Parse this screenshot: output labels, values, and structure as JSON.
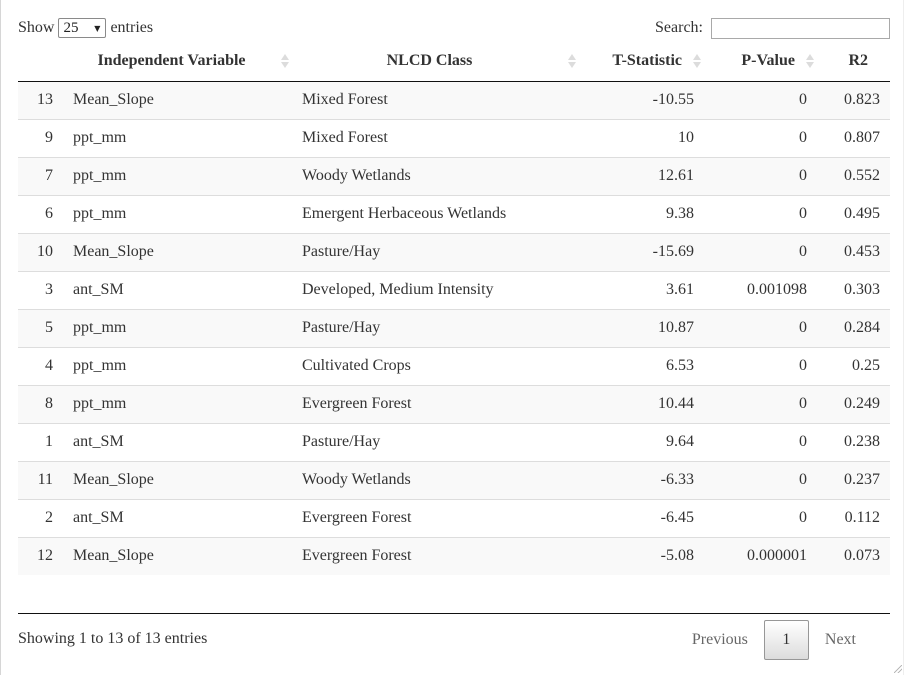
{
  "length_menu": {
    "prefix": "Show",
    "value": "25",
    "suffix": "entries"
  },
  "search": {
    "label": "Search:",
    "value": ""
  },
  "columns": [
    {
      "label": ""
    },
    {
      "label": "Independent Variable",
      "sort": "none"
    },
    {
      "label": "NLCD Class",
      "sort": "none"
    },
    {
      "label": "T-Statistic",
      "sort": "none"
    },
    {
      "label": "P-Value",
      "sort": "none"
    },
    {
      "label": "R2",
      "sort": "descending"
    }
  ],
  "rows": [
    [
      "13",
      "Mean_Slope",
      "Mixed Forest",
      "-10.55",
      "0",
      "0.823"
    ],
    [
      "9",
      "ppt_mm",
      "Mixed Forest",
      "10",
      "0",
      "0.807"
    ],
    [
      "7",
      "ppt_mm",
      "Woody Wetlands",
      "12.61",
      "0",
      "0.552"
    ],
    [
      "6",
      "ppt_mm",
      "Emergent Herbaceous Wetlands",
      "9.38",
      "0",
      "0.495"
    ],
    [
      "10",
      "Mean_Slope",
      "Pasture/Hay",
      "-15.69",
      "0",
      "0.453"
    ],
    [
      "3",
      "ant_SM",
      "Developed, Medium Intensity",
      "3.61",
      "0.001098",
      "0.303"
    ],
    [
      "5",
      "ppt_mm",
      "Pasture/Hay",
      "10.87",
      "0",
      "0.284"
    ],
    [
      "4",
      "ppt_mm",
      "Cultivated Crops",
      "6.53",
      "0",
      "0.25"
    ],
    [
      "8",
      "ppt_mm",
      "Evergreen Forest",
      "10.44",
      "0",
      "0.249"
    ],
    [
      "1",
      "ant_SM",
      "Pasture/Hay",
      "9.64",
      "0",
      "0.238"
    ],
    [
      "11",
      "Mean_Slope",
      "Woody Wetlands",
      "-6.33",
      "0",
      "0.237"
    ],
    [
      "2",
      "ant_SM",
      "Evergreen Forest",
      "-6.45",
      "0",
      "0.112"
    ],
    [
      "12",
      "Mean_Slope",
      "Evergreen Forest",
      "-5.08",
      "0.000001",
      "0.073"
    ]
  ],
  "info": "Showing 1 to 13 of 13 entries",
  "pagination": {
    "previous": "Previous",
    "current_page": "1",
    "next": "Next"
  },
  "colors": {
    "active_sort": "#8a8fd6",
    "odd_row": "#f9f9f9",
    "header_rule": "#111111"
  }
}
